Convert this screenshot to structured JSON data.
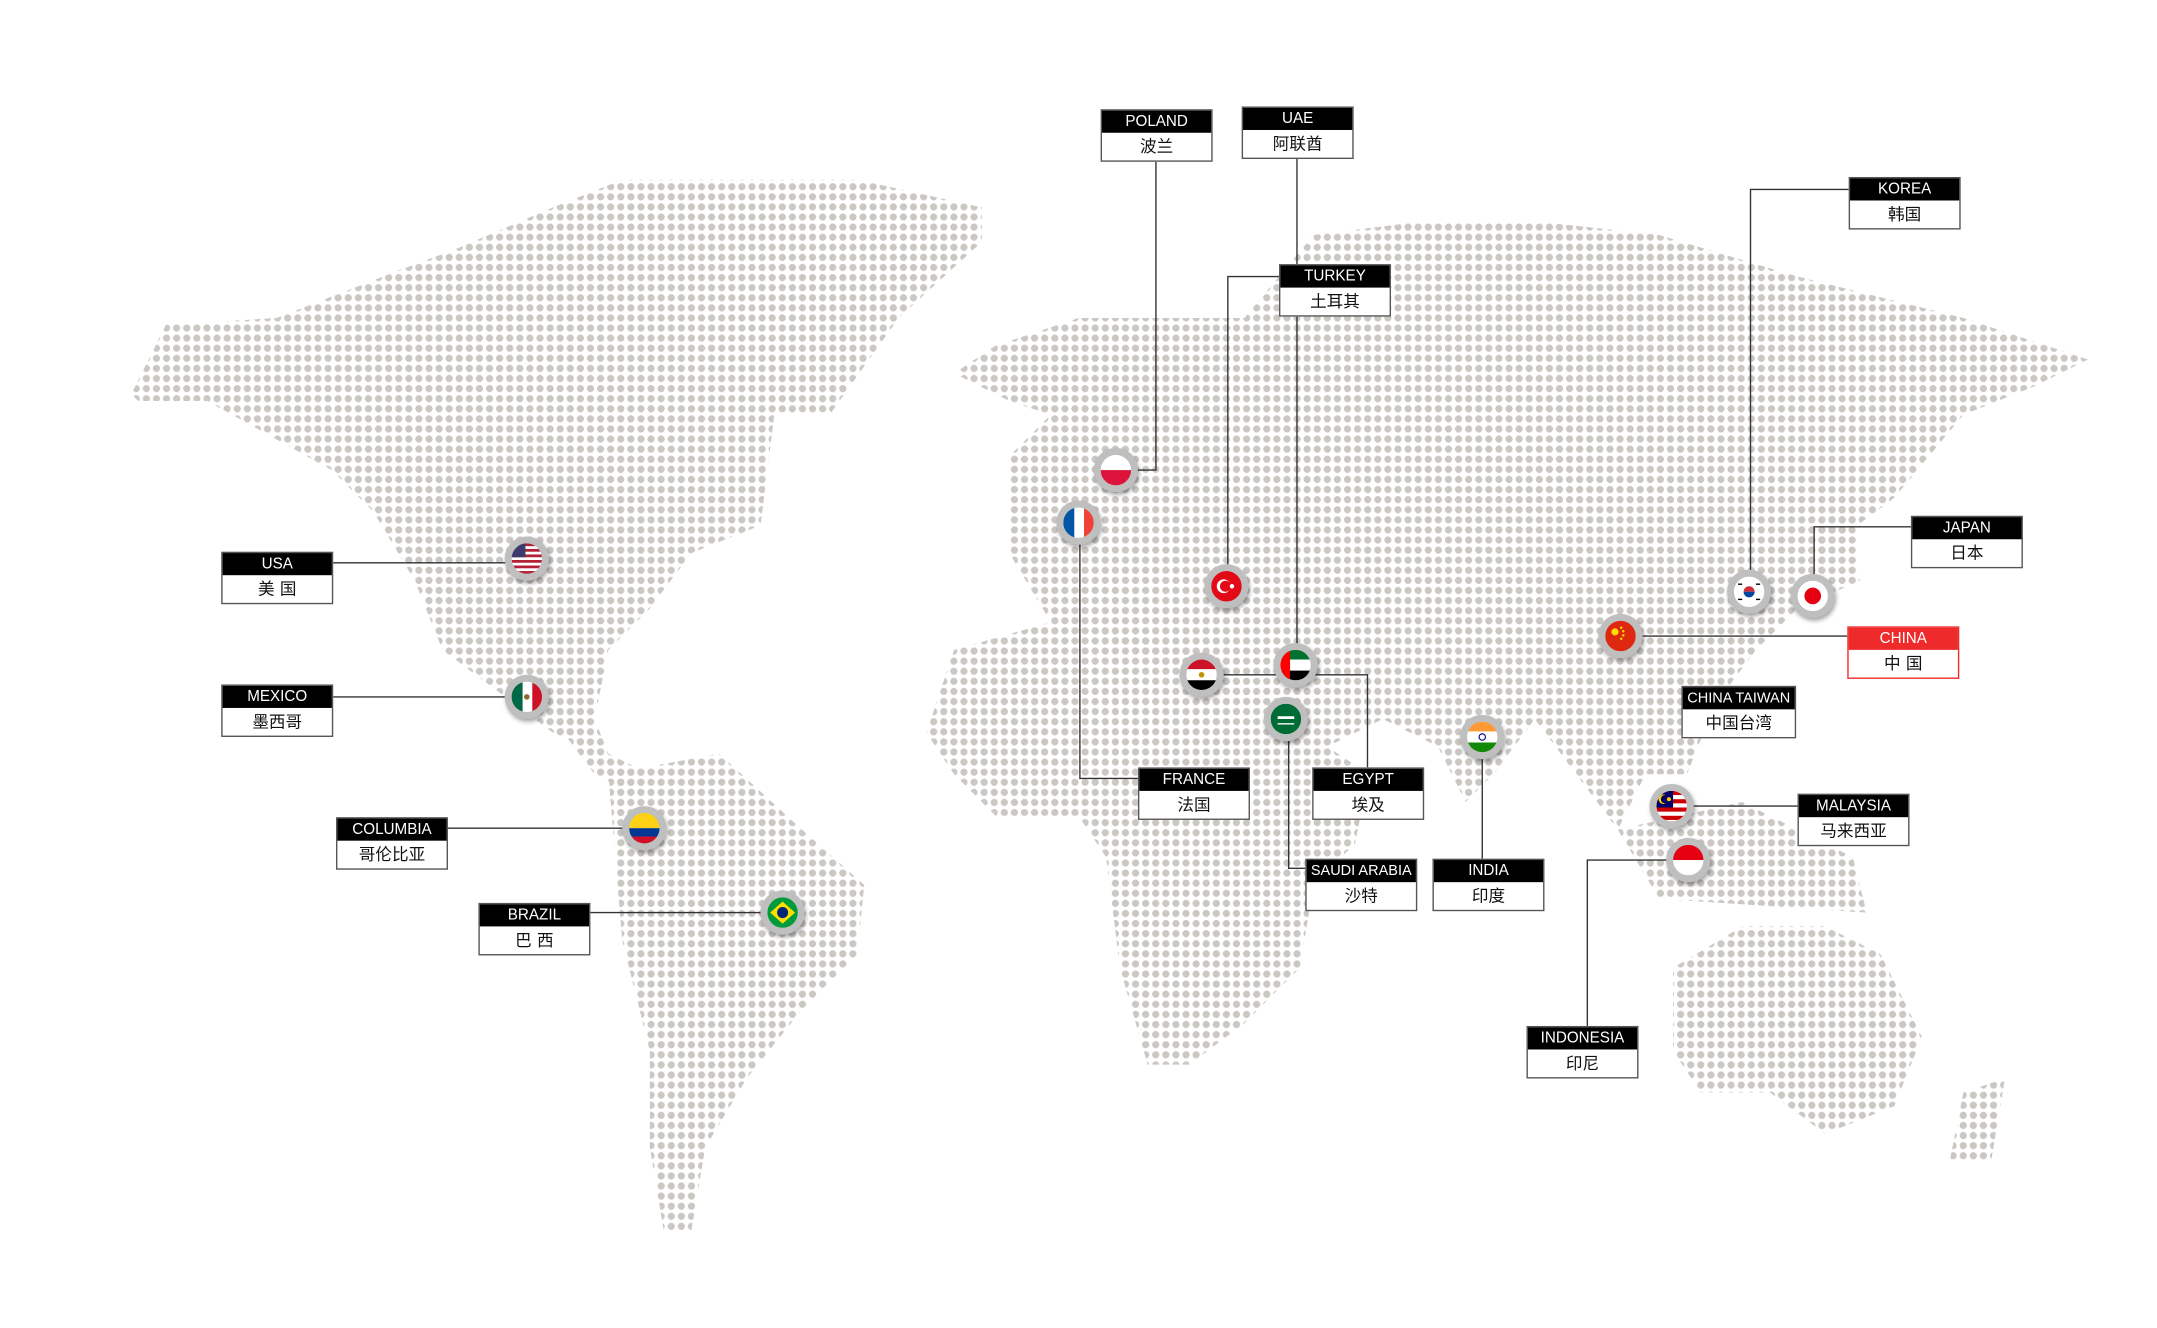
{
  "colors": {
    "dot": "#cbc7c3",
    "line": "#333333",
    "label_bg": "#000000",
    "highlight": "#ee2a2a"
  },
  "countries": [
    {
      "en": "POLAND",
      "cn": "波兰",
      "flag": "poland-flag-icon"
    },
    {
      "en": "UAE",
      "cn": "阿联酋",
      "flag": "uae-flag-icon"
    },
    {
      "en": "TURKEY",
      "cn": "土耳其",
      "flag": "turkey-flag-icon"
    },
    {
      "en": "KOREA",
      "cn": "韩国",
      "flag": "korea-flag-icon"
    },
    {
      "en": "JAPAN",
      "cn": "日本",
      "flag": "japan-flag-icon"
    },
    {
      "en": "CHINA",
      "cn": "中 国",
      "flag": "china-flag-icon",
      "highlighted": true
    },
    {
      "en": "CHINA TAIWAN",
      "cn": "中国台湾"
    },
    {
      "en": "MALAYSIA",
      "cn": "马来西亚",
      "flag": "malaysia-flag-icon"
    },
    {
      "en": "INDONESIA",
      "cn": "印尼",
      "flag": "indonesia-flag-icon"
    },
    {
      "en": "INDIA",
      "cn": "印度",
      "flag": "india-flag-icon"
    },
    {
      "en": "SAUDI ARABIA",
      "cn": "沙特",
      "flag": "saudi-arabia-flag-icon"
    },
    {
      "en": "EGYPT",
      "cn": "埃及",
      "flag": "egypt-flag-icon"
    },
    {
      "en": "FRANCE",
      "cn": "法国",
      "flag": "france-flag-icon"
    },
    {
      "en": "USA",
      "cn": "美 国",
      "flag": "usa-flag-icon"
    },
    {
      "en": "MEXICO",
      "cn": "墨西哥",
      "flag": "mexico-flag-icon"
    },
    {
      "en": "COLUMBIA",
      "cn": "哥伦比亚",
      "flag": "colombia-flag-icon"
    },
    {
      "en": "BRAZIL",
      "cn": "巴 西",
      "flag": "brazil-flag-icon"
    }
  ]
}
